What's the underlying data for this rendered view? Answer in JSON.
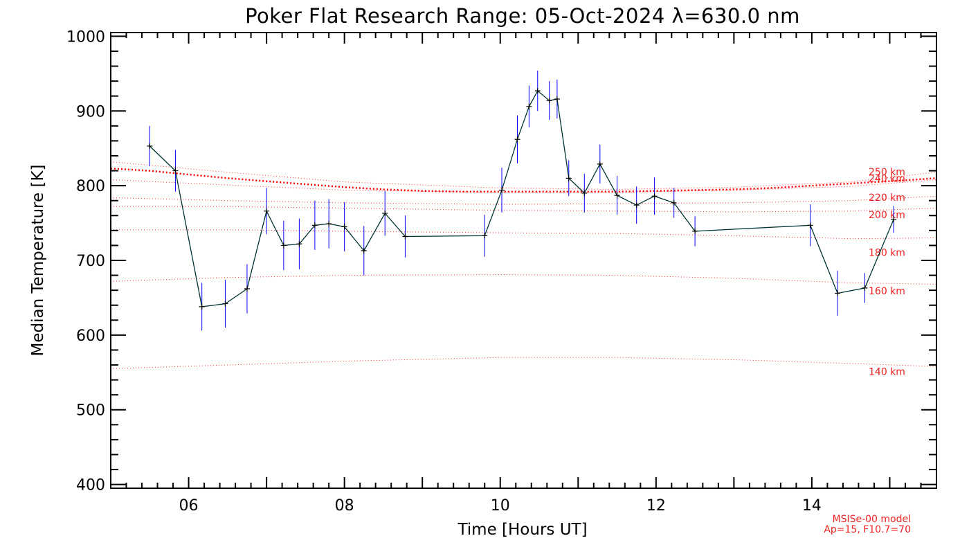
{
  "chart_data": {
    "type": "line",
    "title": "Poker Flat Research Range: 05-Oct-2024 λ=630.0 nm",
    "xlabel": "Time [Hours UT]",
    "ylabel": "Median Temperature [K]",
    "xlim": [
      5.0,
      15.6
    ],
    "ylim": [
      395,
      1005
    ],
    "x_ticks": [
      6,
      8,
      10,
      12,
      14
    ],
    "x_tick_labels": [
      "06",
      "08",
      "10",
      "12",
      "14"
    ],
    "x_minor_step": 0.2,
    "y_ticks": [
      400,
      500,
      600,
      700,
      800,
      900,
      1000
    ],
    "y_minor_step": 20,
    "grid": false,
    "colors": {
      "measurement_line": "#003333",
      "error_bars": "#0000ff",
      "markers": "#000000",
      "model": "#ff0000"
    },
    "series": [
      {
        "x": [
          5.5,
          5.83,
          6.17,
          6.47,
          6.75,
          7.0,
          7.22,
          7.42,
          7.62,
          7.8,
          8.0,
          8.25,
          8.52,
          8.78,
          9.8,
          10.02,
          10.22,
          10.37,
          10.48,
          10.63,
          10.73,
          10.88,
          11.08,
          11.28,
          11.5,
          11.75,
          11.98,
          12.23,
          12.5,
          13.98,
          14.33,
          14.68,
          15.05
        ],
        "y": [
          853,
          820,
          638,
          642,
          662,
          766,
          720,
          722,
          747,
          749,
          745,
          713,
          763,
          732,
          733,
          794,
          862,
          906,
          927,
          914,
          916,
          810,
          790,
          829,
          787,
          774,
          786,
          777,
          739,
          747,
          656,
          663,
          755
        ],
        "error": [
          27,
          28,
          32,
          32,
          33,
          31,
          33,
          34,
          33,
          33,
          33,
          33,
          30,
          28,
          28,
          30,
          32,
          28,
          27,
          26,
          26,
          24,
          26,
          26,
          26,
          25,
          25,
          20,
          20,
          28,
          30,
          20,
          18
        ]
      }
    ],
    "model_curves": [
      {
        "label": "140 km",
        "x": [
          5.0,
          6.5,
          8.0,
          10.0,
          11.5,
          13.0,
          14.5,
          15.6
        ],
        "y": [
          555,
          560,
          565,
          570,
          570,
          567,
          562,
          558
        ]
      },
      {
        "label": "160 km",
        "x": [
          5.0,
          6.5,
          8.0,
          10.0,
          11.5,
          13.0,
          14.5,
          15.6
        ],
        "y": [
          672,
          677,
          680,
          681,
          680,
          676,
          670,
          668
        ]
      },
      {
        "label": "180 km",
        "x": [
          5.0,
          6.5,
          8.0,
          10.0,
          11.5,
          13.0,
          14.5,
          15.6
        ],
        "y": [
          741,
          741,
          739,
          737,
          736,
          733,
          729,
          730
        ]
      },
      {
        "label": "200 km",
        "x": [
          5.0,
          6.5,
          8.0,
          10.0,
          11.5,
          13.0,
          14.5,
          15.6
        ],
        "y": [
          772,
          772,
          770,
          767,
          766,
          765,
          766,
          770
        ]
      },
      {
        "label": "220 km",
        "x": [
          5.0,
          6.5,
          8.0,
          10.0,
          11.5,
          13.0,
          14.5,
          15.6
        ],
        "y": [
          784,
          780,
          777,
          775,
          776,
          777,
          780,
          786
        ]
      },
      {
        "label": "240 km",
        "x": [
          5.0,
          6.5,
          8.0,
          10.0,
          11.5,
          13.0,
          14.5,
          15.6
        ],
        "y": [
          808,
          801,
          794,
          791,
          791,
          794,
          799,
          808
        ]
      },
      {
        "label": "250 km",
        "x": [
          5.0,
          6.5,
          8.0,
          10.0,
          11.5,
          13.0,
          14.5,
          15.6
        ],
        "y": [
          832,
          818,
          805,
          797,
          795,
          798,
          805,
          818
        ]
      }
    ],
    "model_exospheric": {
      "x": [
        5.0,
        5.5,
        6.0,
        6.5,
        7.0,
        7.5,
        8.0,
        8.5,
        9.0,
        9.5,
        10.0,
        10.5,
        11.0,
        11.5,
        12.0,
        12.5,
        13.0,
        13.5,
        14.0,
        14.5,
        15.0,
        15.6
      ],
      "y": [
        823,
        820,
        815,
        810,
        806,
        802,
        798,
        795,
        793,
        792,
        792,
        792,
        792,
        792,
        793,
        794,
        795,
        797,
        800,
        803,
        806,
        810
      ]
    },
    "annotation": {
      "line1": "MSISe-00 model",
      "line2": "Ap=15, F10.7=70"
    }
  }
}
